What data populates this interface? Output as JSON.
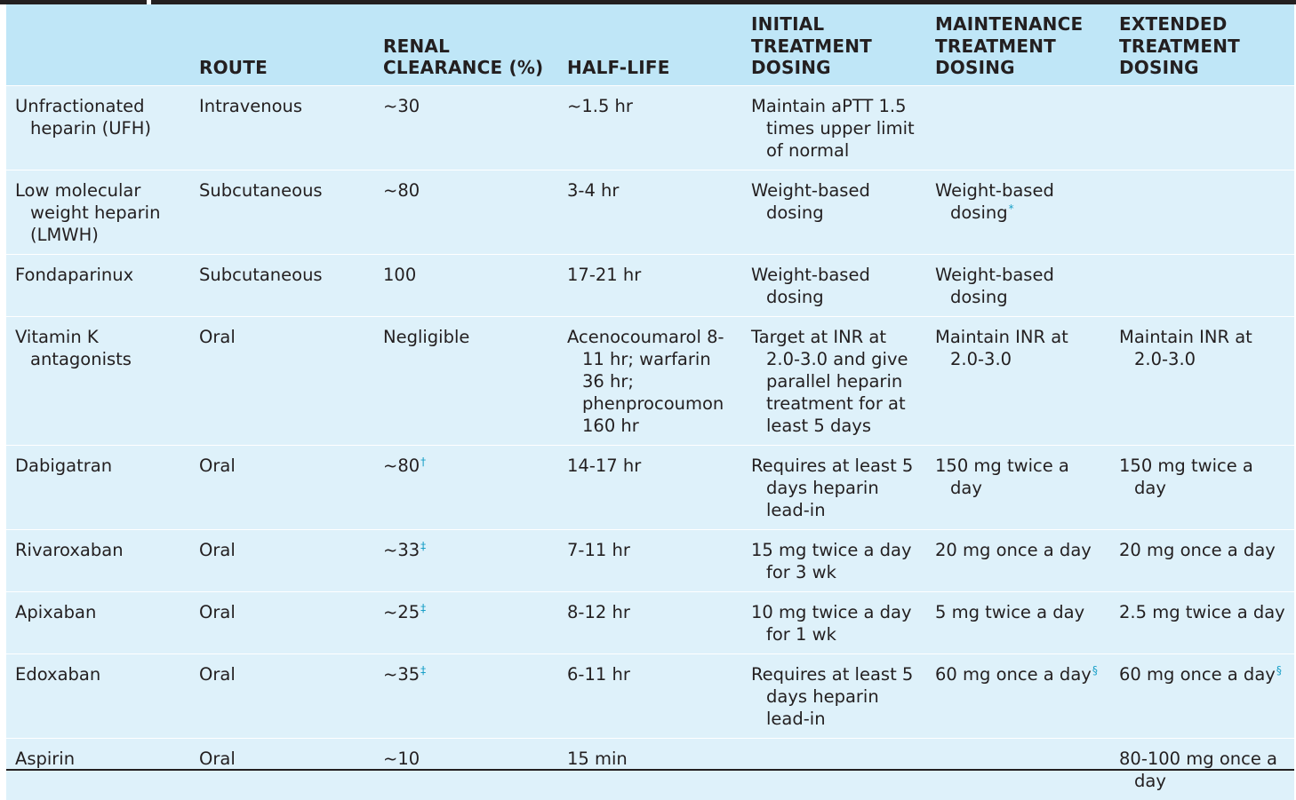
{
  "columns": [
    "",
    "ROUTE",
    "RENAL CLEARANCE (%)",
    "HALF-LIFE",
    "INITIAL TREATMENT DOSING",
    "MAINTENANCE TREATMENT DOSING",
    "EXTENDED TREATMENT DOSING"
  ],
  "rows": [
    {
      "drug": "Unfractionated heparin (UFH)",
      "route": "Intravenous",
      "renal": "~30",
      "renal_fn": "",
      "half_life": "~1.5 hr",
      "initial": "Maintain aPTT 1.5 times upper limit of normal",
      "maintenance": "",
      "maintenance_fn": "",
      "extended": "",
      "extended_fn": ""
    },
    {
      "drug": "Low molecular weight heparin (LMWH)",
      "route": "Subcutaneous",
      "renal": "~80",
      "renal_fn": "",
      "half_life": "3-4 hr",
      "initial": "Weight-based dosing",
      "maintenance": "Weight-based dosing",
      "maintenance_fn": "*",
      "extended": "",
      "extended_fn": ""
    },
    {
      "drug": "Fondaparinux",
      "route": "Subcutaneous",
      "renal": "100",
      "renal_fn": "",
      "half_life": "17-21 hr",
      "initial": "Weight-based dosing",
      "maintenance": "Weight-based dosing",
      "maintenance_fn": "",
      "extended": "",
      "extended_fn": ""
    },
    {
      "drug": "Vitamin K antagonists",
      "route": "Oral",
      "renal": "Negligible",
      "renal_fn": "",
      "half_life": "Acenocoumarol 8-11 hr; warfarin 36 hr; phenprocoumon 160 hr",
      "initial": "Target at INR at 2.0-3.0 and give parallel heparin treatment for at least 5 days",
      "maintenance": "Maintain INR at 2.0-3.0",
      "maintenance_fn": "",
      "extended": "Maintain INR at 2.0-3.0",
      "extended_fn": ""
    },
    {
      "drug": "Dabigatran",
      "route": "Oral",
      "renal": "~80",
      "renal_fn": "†",
      "half_life": "14-17 hr",
      "initial": "Requires at least 5 days heparin lead-in",
      "maintenance": "150 mg twice a day",
      "maintenance_fn": "",
      "extended": "150 mg twice a day",
      "extended_fn": ""
    },
    {
      "drug": "Rivaroxaban",
      "route": "Oral",
      "renal": "~33",
      "renal_fn": "‡",
      "half_life": "7-11 hr",
      "initial": "15 mg twice a day for 3 wk",
      "maintenance": "20 mg once a day",
      "maintenance_fn": "",
      "extended": "20 mg once a day",
      "extended_fn": ""
    },
    {
      "drug": "Apixaban",
      "route": "Oral",
      "renal": "~25",
      "renal_fn": "‡",
      "half_life": "8-12 hr",
      "initial": "10 mg twice a day for 1 wk",
      "maintenance": "5 mg twice a day",
      "maintenance_fn": "",
      "extended": "2.5 mg twice a day",
      "extended_fn": ""
    },
    {
      "drug": "Edoxaban",
      "route": "Oral",
      "renal": "~35",
      "renal_fn": "‡",
      "half_life": "6-11 hr",
      "initial": "Requires at least 5 days heparin lead-in",
      "maintenance": "60 mg once a day",
      "maintenance_fn": "§",
      "extended": "60 mg once a day",
      "extended_fn": "§"
    },
    {
      "drug": "Aspirin",
      "route": "Oral",
      "renal": "~10",
      "renal_fn": "",
      "half_life": "15 min",
      "initial": "",
      "maintenance": "",
      "maintenance_fn": "",
      "extended": "80-100 mg once a day",
      "extended_fn": ""
    }
  ],
  "colors": {
    "header_bg": "#bfe6f7",
    "row_bg": "#def1fa",
    "footnote_mark": "#1aa0c8",
    "text": "#231f20"
  }
}
